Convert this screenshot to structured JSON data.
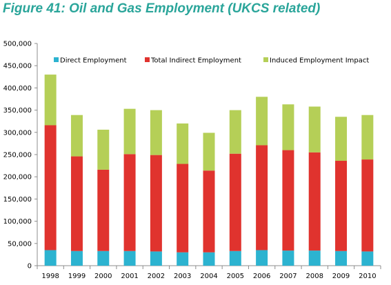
{
  "figure": {
    "title": "Figure 41: Oil and Gas Employment (UKCS related)",
    "title_color": "#2aa59a"
  },
  "chart_data": {
    "type": "bar",
    "stacked": true,
    "title": "Figure 41: Oil and Gas Employment (UKCS related)",
    "xlabel": "",
    "ylabel": "",
    "categories": [
      "1998",
      "1999",
      "2000",
      "2001",
      "2002",
      "2003",
      "2004",
      "2005",
      "2006",
      "2007",
      "2008",
      "2009",
      "2010"
    ],
    "ylim": [
      0,
      500000
    ],
    "yticks": [
      0,
      50000,
      100000,
      150000,
      200000,
      250000,
      300000,
      350000,
      400000,
      450000,
      500000
    ],
    "ytick_labels": [
      "0",
      "50,000",
      "100,000",
      "150,000",
      "200,000",
      "250,000",
      "300,000",
      "350,000",
      "400,000",
      "450,000",
      "500,000"
    ],
    "grid": false,
    "legend_position": "top",
    "series": [
      {
        "name": "Direct Employment",
        "color": "#2cb3d0",
        "values": [
          35000,
          33000,
          33000,
          33000,
          32000,
          30000,
          30000,
          33000,
          35000,
          34000,
          34000,
          33000,
          32000
        ]
      },
      {
        "name": "Total Indirect Employment",
        "color": "#e0332e",
        "values": [
          281000,
          213000,
          183000,
          218000,
          217000,
          199000,
          184000,
          219000,
          236000,
          226000,
          221000,
          203000,
          207000
        ]
      },
      {
        "name": "Induced Employment Impact",
        "color": "#b5cf57",
        "values": [
          114000,
          93000,
          90000,
          102000,
          101000,
          91000,
          85000,
          98000,
          109000,
          103000,
          103000,
          99000,
          100000
        ]
      }
    ]
  }
}
